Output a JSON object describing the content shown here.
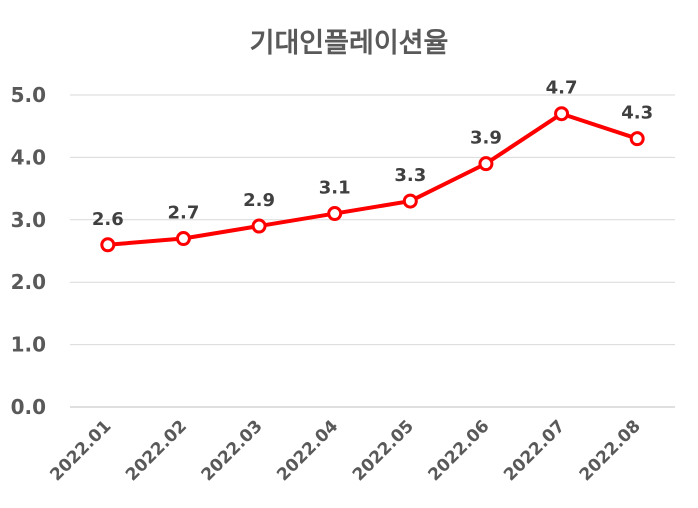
{
  "chart_data": {
    "type": "line",
    "title": "기대인플레이션율",
    "xlabel": "",
    "ylabel": "",
    "categories": [
      "2022.01",
      "2022.02",
      "2022.03",
      "2022.04",
      "2022.05",
      "2022.06",
      "2022.07",
      "2022.08"
    ],
    "series": [
      {
        "values": [
          2.6,
          2.7,
          2.9,
          3.1,
          3.3,
          3.9,
          4.7,
          4.3
        ],
        "data_labels": [
          "2.6",
          "2.7",
          "2.9",
          "3.1",
          "3.3",
          "3.9",
          "4.7",
          "4.3"
        ],
        "color": "#ff0000"
      }
    ],
    "ylim": [
      0,
      5
    ],
    "yticks": [
      "0.0",
      "1.0",
      "2.0",
      "3.0",
      "4.0",
      "5.0"
    ],
    "grid": true,
    "legend": "none",
    "colors": {
      "text": "#595959",
      "label": "#404040",
      "grid": "#d9d9d9",
      "axis": "#bfbfbf",
      "marker_fill": "#ffffff"
    }
  }
}
